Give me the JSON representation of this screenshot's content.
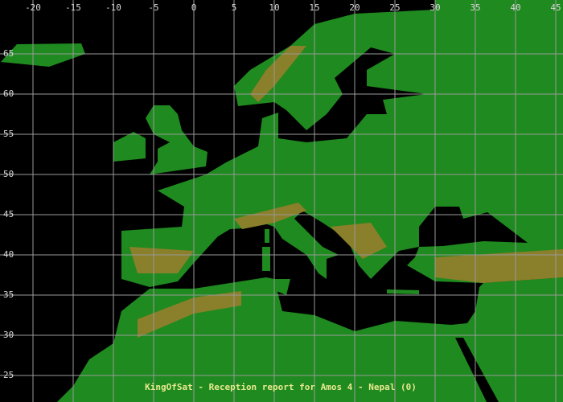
{
  "map": {
    "longitudes": [
      -20,
      -15,
      -10,
      -5,
      0,
      5,
      10,
      15,
      20,
      25,
      30,
      35,
      40,
      45
    ],
    "latitudes": [
      65,
      60,
      55,
      50,
      45,
      40,
      35,
      30,
      25
    ],
    "caption": "KingOfSat - Reception report for Amos 4 - Nepal (0)"
  }
}
